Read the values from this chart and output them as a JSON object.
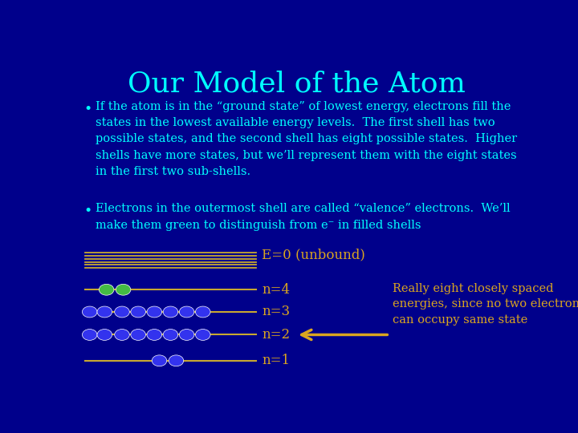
{
  "title": "Our Model of the Atom",
  "title_color": "#00FFFF",
  "title_fontsize": 26,
  "bg_color": "#00008B",
  "bullet_color": "#00FFFF",
  "bullet_fontsize": 10.5,
  "bullet1": "If the atom is in the “ground state” of lowest energy, electrons fill the\nstates in the lowest available energy levels.  The first shell has two\npossible states, and the second shell has eight possible states.  Higher\nshells have more states, but we’ll represent them with the eight states\nin the first two sub-shells.",
  "bullet2": "Electrons in the outermost shell are called “valence” electrons.  We’ll\nmake them green to distinguish from e⁻ in filled shells",
  "label_color": "#DAA520",
  "diagram_labels": [
    "n=4",
    "n=3",
    "n=2",
    "n=1"
  ],
  "e0_label": "E=0 (unbound)",
  "arrow_note": "Really eight closely spaced\nenergies, since no two electrons\ncan occupy same state",
  "electron_blue": "#3333EE",
  "electron_green": "#44BB44",
  "line_color": "#C8A830"
}
